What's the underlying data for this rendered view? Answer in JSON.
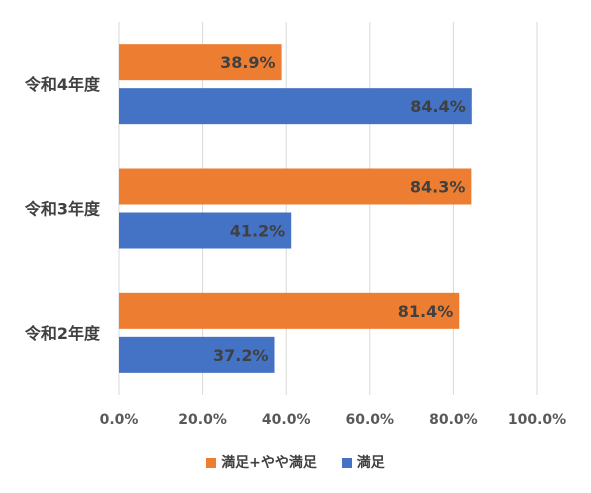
{
  "chart_data": {
    "type": "bar",
    "orientation": "horizontal",
    "categories": [
      "令和4年度",
      "令和3年度",
      "令和2年度"
    ],
    "series": [
      {
        "name": "満足+やや満足",
        "color": "#ED7D31",
        "values": [
          38.9,
          84.3,
          81.4
        ],
        "labels": [
          "38.9%",
          "84.3%",
          "81.4%"
        ]
      },
      {
        "name": "満足",
        "color": "#4472C4",
        "values": [
          84.4,
          41.2,
          37.2
        ],
        "labels": [
          "84.4%",
          "41.2%",
          "37.2%"
        ]
      }
    ],
    "xlim": [
      0,
      100
    ],
    "x_ticks": [
      "0.0%",
      "20.0%",
      "40.0%",
      "60.0%",
      "80.0%",
      "100.0%"
    ],
    "grid": true,
    "legend_position": "bottom"
  }
}
